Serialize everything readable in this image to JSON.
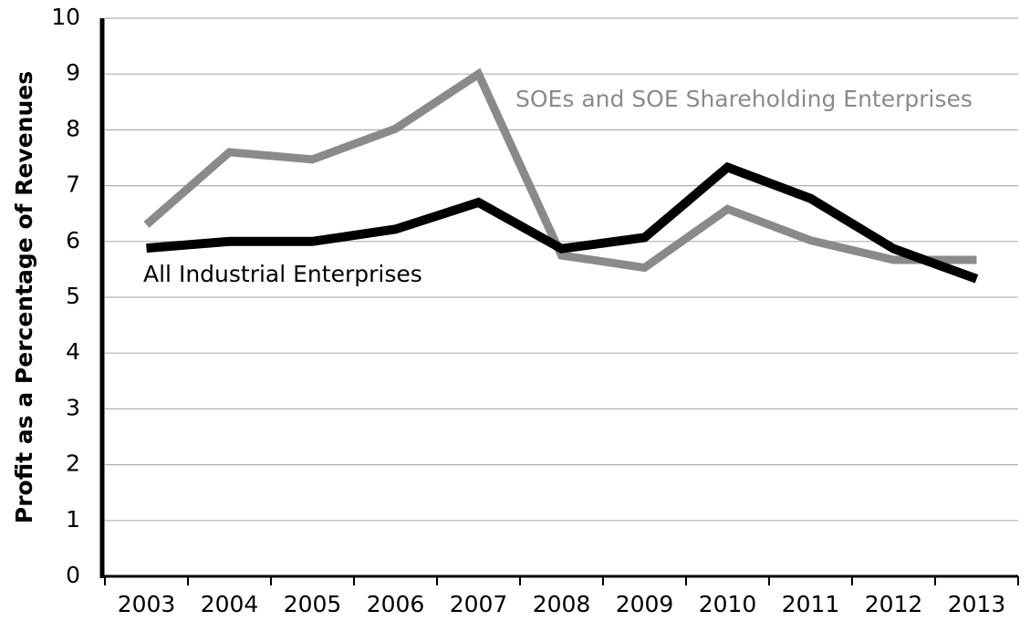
{
  "chart_data": {
    "type": "line",
    "y_label": "Profit as a Percentage of Revenues",
    "categories": [
      "2003",
      "2004",
      "2005",
      "2006",
      "2007",
      "2008",
      "2009",
      "2010",
      "2011",
      "2012",
      "2013"
    ],
    "series": [
      {
        "name": "SOEs and SOE Shareholding Enterprises",
        "color": "#8a8a8a",
        "values": [
          6.3,
          7.6,
          7.47,
          8.02,
          9.0,
          5.75,
          5.53,
          6.58,
          6.02,
          5.67,
          5.67
        ]
      },
      {
        "name": "All Industrial Enterprises",
        "color": "#000000",
        "values": [
          5.88,
          6.0,
          6.0,
          6.22,
          6.7,
          5.87,
          6.07,
          7.33,
          6.77,
          5.87,
          5.33
        ]
      }
    ],
    "ylim": [
      0,
      10
    ],
    "yticks": [
      0,
      1,
      2,
      3,
      4,
      5,
      6,
      7,
      8,
      9,
      10
    ],
    "grid": true
  }
}
